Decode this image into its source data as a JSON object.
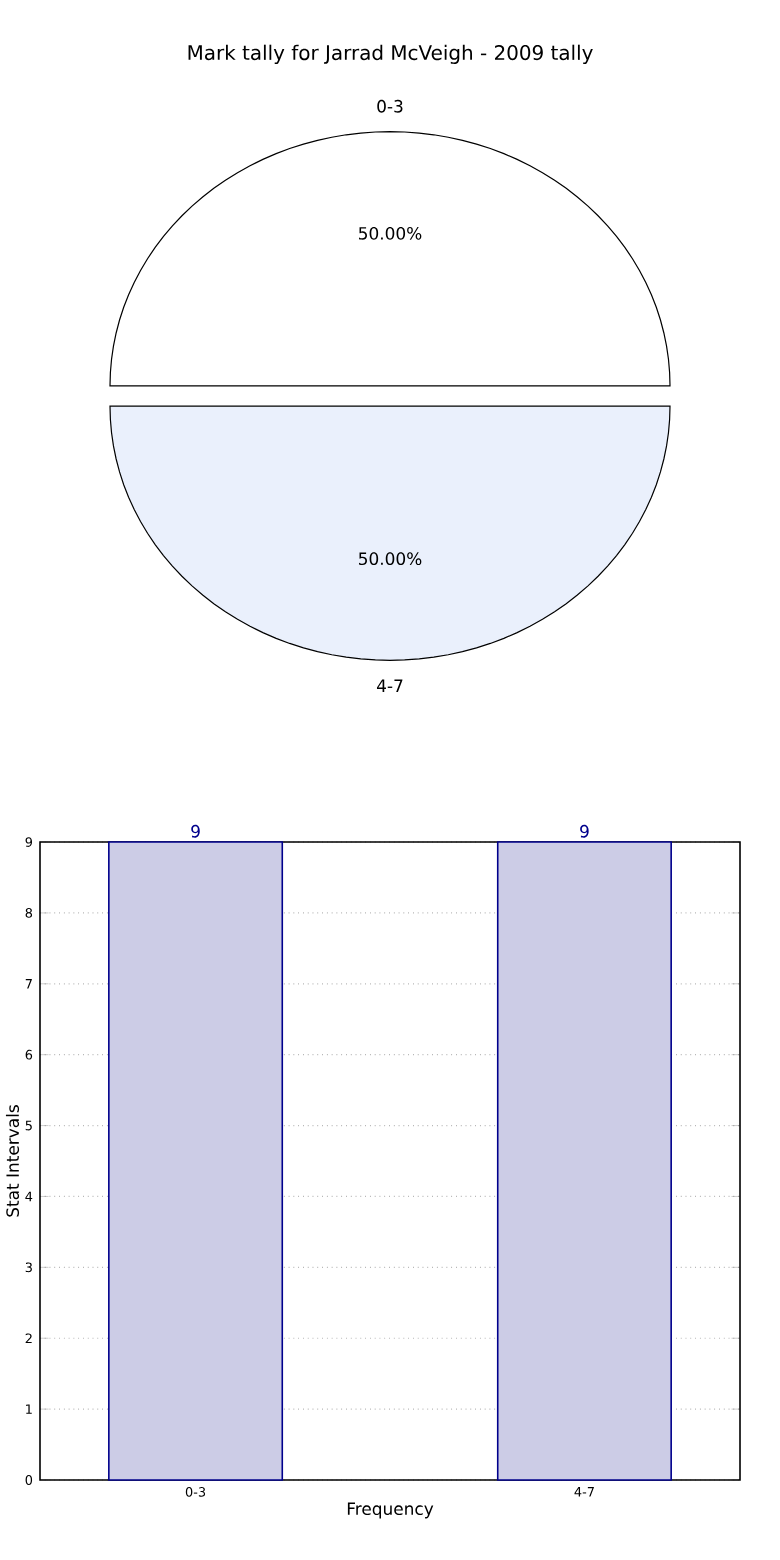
{
  "chart_data": [
    {
      "type": "pie",
      "title": "Mark tally for Jarrad McVeigh - 2009 tally",
      "categories": [
        "0-3",
        "4-7"
      ],
      "values": [
        50,
        50
      ],
      "colors": [
        "#ffffff",
        "#eaf0fc"
      ],
      "value_labels": [
        "50.00%",
        "50.00%"
      ]
    },
    {
      "type": "bar",
      "categories": [
        "0-3",
        "4-7"
      ],
      "values": [
        9,
        9
      ],
      "color": "#cccce6",
      "ylim": [
        0,
        9
      ],
      "yticks": [
        0,
        1,
        2,
        3,
        4,
        5,
        6,
        7,
        8,
        9
      ],
      "grid": true,
      "data_labels": true,
      "xlabel": "Frequency",
      "ylabel": "Stat Intervals"
    }
  ]
}
